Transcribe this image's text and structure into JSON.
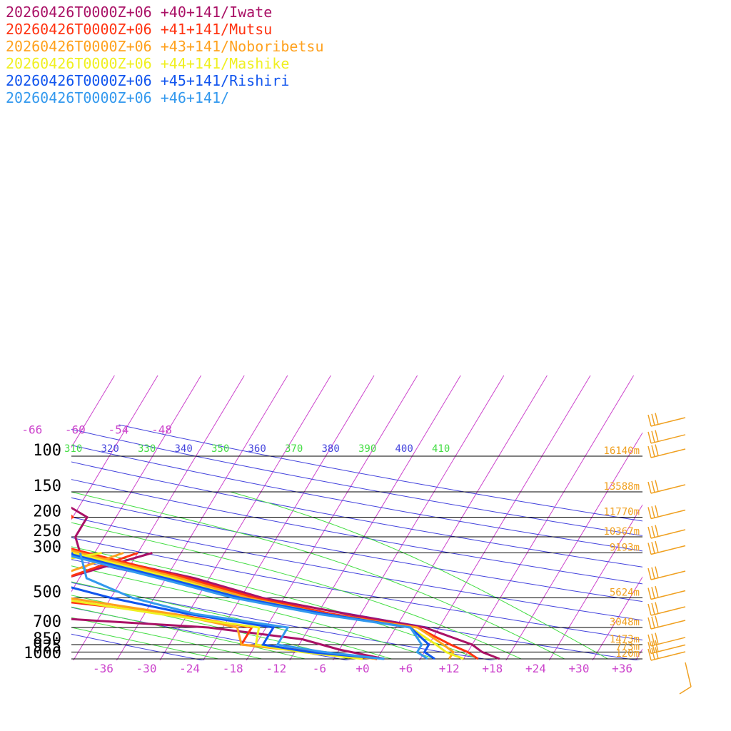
{
  "chart_data": {
    "type": "line",
    "chart_kind": "skew-T log-P sounding",
    "title": "",
    "xlabel": "",
    "ylabel": "",
    "pressure_levels": [
      100,
      150,
      200,
      250,
      300,
      500,
      700,
      850,
      925,
      1000
    ],
    "heights": [
      {
        "p": 100,
        "label": "16140m"
      },
      {
        "p": 150,
        "label": "13588m"
      },
      {
        "p": 200,
        "label": "11770m"
      },
      {
        "p": 250,
        "label": "10367m"
      },
      {
        "p": 300,
        "label": "9193m"
      },
      {
        "p": 500,
        "label": "5624m"
      },
      {
        "p": 700,
        "label": "3048m"
      },
      {
        "p": 850,
        "label": "1473m"
      },
      {
        "p": 925,
        "label": "773m"
      },
      {
        "p": 1000,
        "label": "120m"
      }
    ],
    "temp_ticks": [
      "-36",
      "-30",
      "-24",
      "-18",
      "-12",
      "-6",
      "+0",
      "+6",
      "+12",
      "+18",
      "+24",
      "+30",
      "+36"
    ],
    "temp_tick_values": [
      -36,
      -30,
      -24,
      -18,
      -12,
      -6,
      0,
      6,
      12,
      18,
      24,
      30,
      36
    ],
    "upper_isotherm_labels": [
      "-66",
      "-60",
      "-54",
      "-48"
    ],
    "upper_isotherm_values": [
      -66,
      -60,
      -54,
      -48
    ],
    "theta_labels": [
      {
        "text": "310",
        "color": "#44dd44"
      },
      {
        "text": "320",
        "color": "#4444dd"
      },
      {
        "text": "330",
        "color": "#44dd44"
      },
      {
        "text": "340",
        "color": "#4444dd"
      },
      {
        "text": "350",
        "color": "#44dd44"
      },
      {
        "text": "360",
        "color": "#4444dd"
      },
      {
        "text": "370",
        "color": "#44dd44"
      },
      {
        "text": "380",
        "color": "#4444dd"
      },
      {
        "text": "390",
        "color": "#44dd44"
      },
      {
        "text": "400",
        "color": "#4444dd"
      },
      {
        "text": "410",
        "color": "#44dd44"
      }
    ],
    "series": [
      {
        "name": "20260426T0000Z+06 +40+141/Iwate",
        "color": "#aa1166",
        "temperature": [
          [
            -86,
            900
          ],
          [
            -66,
            100
          ],
          [
            -58,
            150
          ],
          [
            -50,
            200
          ],
          [
            -50,
            250
          ],
          [
            -48,
            300
          ],
          [
            -30,
            400
          ],
          [
            -19,
            500
          ],
          [
            -6,
            600
          ],
          [
            6,
            700
          ],
          [
            14,
            850
          ],
          [
            16,
            925
          ],
          [
            19,
            1000
          ]
        ],
        "dewpoint": [
          [
            -38,
            300
          ],
          [
            -48,
            400
          ],
          [
            -52,
            500
          ],
          [
            -56,
            600
          ],
          [
            -24,
            700
          ],
          [
            -10,
            800
          ],
          [
            -4,
            900
          ],
          [
            3,
            1000
          ]
        ]
      },
      {
        "name": "20260426T0000Z+06 +41+141/Mutsu",
        "color": "#ff3311",
        "temperature": [
          [
            -84,
            800
          ],
          [
            -66,
            100
          ],
          [
            -58,
            150
          ],
          [
            -52,
            200
          ],
          [
            -57,
            250
          ],
          [
            -47,
            300
          ],
          [
            -31,
            400
          ],
          [
            -20,
            500
          ],
          [
            -8,
            600
          ],
          [
            5,
            700
          ],
          [
            11,
            850
          ],
          [
            14,
            925
          ],
          [
            16,
            1000
          ]
        ],
        "dewpoint": [
          [
            -40,
            300
          ],
          [
            -48,
            400
          ],
          [
            -51,
            500
          ],
          [
            -30,
            600
          ],
          [
            -18,
            700
          ],
          [
            -18,
            850
          ],
          [
            -6,
            925
          ],
          [
            2,
            1000
          ]
        ]
      },
      {
        "name": "20260426T0000Z+06 +43+141/Noboribetsu",
        "color": "#ffa11d",
        "temperature": [
          [
            -83,
            750
          ],
          [
            -64,
            100
          ],
          [
            -58,
            150
          ],
          [
            -53,
            200
          ],
          [
            -57,
            250
          ],
          [
            -48,
            300
          ],
          [
            -32,
            400
          ],
          [
            -21,
            500
          ],
          [
            -9,
            600
          ],
          [
            5,
            700
          ],
          [
            10,
            850
          ],
          [
            12,
            925
          ],
          [
            12,
            1000
          ]
        ],
        "dewpoint": [
          [
            -42,
            300
          ],
          [
            -50,
            400
          ],
          [
            -46,
            500
          ],
          [
            -30,
            600
          ],
          [
            -20,
            700
          ],
          [
            -18,
            850
          ],
          [
            -8,
            925
          ],
          [
            2,
            1000
          ]
        ]
      },
      {
        "name": "20260426T0000Z+06 +44+141/Mashike",
        "color": "#f0f020",
        "temperature": [
          [
            -82,
            700
          ],
          [
            -63,
            100
          ],
          [
            -58,
            150
          ],
          [
            -54,
            200
          ],
          [
            -58,
            250
          ],
          [
            -49,
            300
          ],
          [
            -33,
            400
          ],
          [
            -22,
            500
          ],
          [
            -9,
            600
          ],
          [
            4,
            700
          ],
          [
            9,
            850
          ],
          [
            11,
            925
          ],
          [
            14,
            1000
          ]
        ],
        "dewpoint": [
          [
            -45,
            300
          ],
          [
            -63,
            400
          ],
          [
            -48,
            500
          ],
          [
            -32,
            600
          ],
          [
            -17,
            700
          ],
          [
            -16,
            850
          ],
          [
            -9,
            925
          ],
          [
            0,
            1000
          ]
        ]
      },
      {
        "name": "20260426T0000Z+06 +45+141/Rishiri",
        "color": "#1155ee",
        "temperature": [
          [
            -82,
            700
          ],
          [
            -63,
            100
          ],
          [
            -57,
            150
          ],
          [
            -55,
            200
          ],
          [
            -60,
            250
          ],
          [
            -50,
            300
          ],
          [
            -34,
            400
          ],
          [
            -22,
            500
          ],
          [
            -9,
            600
          ],
          [
            4,
            700
          ],
          [
            8,
            850
          ],
          [
            8,
            925
          ],
          [
            10,
            1000
          ]
        ],
        "dewpoint": [
          [
            -49,
            300
          ],
          [
            -52,
            400
          ],
          [
            -40,
            500
          ],
          [
            -28,
            600
          ],
          [
            -15,
            700
          ],
          [
            -15,
            850
          ],
          [
            -8,
            925
          ],
          [
            3,
            1000
          ]
        ]
      },
      {
        "name": "20260426T0000Z+06 +46+141/",
        "color": "#3399ee",
        "temperature": [
          [
            -81,
            700
          ],
          [
            -62,
            100
          ],
          [
            -56,
            150
          ],
          [
            -57,
            200
          ],
          [
            -62,
            250
          ],
          [
            -51,
            300
          ],
          [
            -35,
            400
          ],
          [
            -23,
            500
          ],
          [
            -10,
            600
          ],
          [
            4,
            700
          ],
          [
            7,
            850
          ],
          [
            7,
            925
          ],
          [
            9,
            1000
          ]
        ],
        "dewpoint": [
          [
            -48,
            300
          ],
          [
            -45,
            400
          ],
          [
            -37,
            500
          ],
          [
            -27,
            600
          ],
          [
            -13,
            700
          ],
          [
            -13,
            850
          ],
          [
            -6,
            925
          ],
          [
            3,
            1000
          ]
        ]
      }
    ],
    "wind_barbs": [
      {
        "p": 70
      },
      {
        "p": 85
      },
      {
        "p": 100
      },
      {
        "p": 150
      },
      {
        "p": 200
      },
      {
        "p": 250
      },
      {
        "p": 300
      },
      {
        "p": 400
      },
      {
        "p": 500
      },
      {
        "p": 600
      },
      {
        "p": 700
      },
      {
        "p": 850
      },
      {
        "p": 925
      },
      {
        "p": 1000
      }
    ],
    "colors": {
      "isobar": "#000000",
      "isotherm": "#cc44cc",
      "dry_adiabat": "#4444dd",
      "moist_adiabat": "#44dd44",
      "height_label": "#f0a020",
      "barb": "#f0a020"
    }
  }
}
